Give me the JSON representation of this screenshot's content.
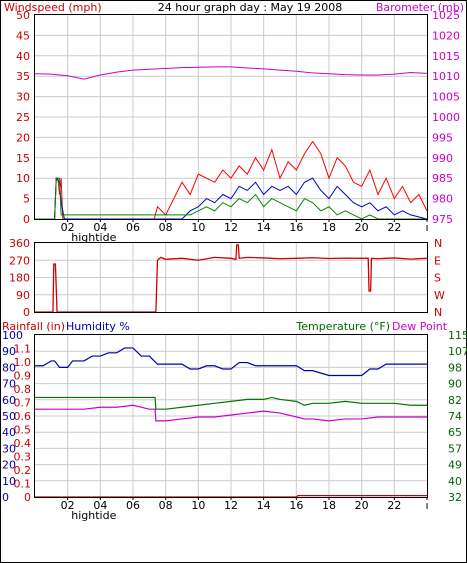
{
  "title": "24 hour graph day : May 19 2008",
  "colors": {
    "wind": "#ff0000",
    "wind_avg": "#0000cc",
    "wind_low": "#008800",
    "barometer": "#cc00cc",
    "direction": "#cc0000",
    "humidity": "#0000aa",
    "temperature": "#007700",
    "dewpoint": "#cc00cc",
    "rainfall": "#cc0000",
    "grid": "#cccccc",
    "frame": "#000000"
  },
  "chart_data": [
    {
      "type": "line",
      "name": "wind-barometer",
      "title": "24 hour graph day : May 19 2008",
      "ylabel": "Windspeed (mph)",
      "y2label": "Barometer (mb)",
      "ylim": [
        0,
        50
      ],
      "y2lim": [
        975,
        1025
      ],
      "yticks": [
        0,
        5,
        10,
        15,
        20,
        25,
        30,
        35,
        40,
        45,
        50
      ],
      "y2ticks": [
        975,
        980,
        985,
        990,
        995,
        1000,
        1005,
        1010,
        1015,
        1020,
        1025
      ],
      "xlim": [
        0,
        24
      ],
      "xticks": [
        "02",
        "04",
        "06",
        "08",
        "10",
        "12",
        "14",
        "16",
        "18",
        "20",
        "22",
        "ı"
      ],
      "xtick_pos": [
        2,
        4,
        6,
        8,
        10,
        12,
        14,
        16,
        18,
        20,
        22,
        24
      ],
      "markers": [
        {
          "label": "hightide",
          "x": 3.6
        }
      ],
      "grid": true,
      "series": [
        {
          "name": "Barometer",
          "axis": "y2",
          "x": [
            0,
            1,
            2,
            3,
            4,
            5,
            6,
            7,
            8,
            9,
            10,
            11,
            12,
            13,
            14,
            15,
            16,
            17,
            18,
            19,
            20,
            21,
            22,
            23,
            24
          ],
          "values": [
            1010.6,
            1010.5,
            1010.1,
            1009.3,
            1010.3,
            1011.0,
            1011.5,
            1011.7,
            1011.9,
            1012.1,
            1012.2,
            1012.3,
            1012.3,
            1012.0,
            1011.8,
            1011.5,
            1011.2,
            1010.8,
            1010.6,
            1010.4,
            1010.3,
            1010.3,
            1010.5,
            1010.9,
            1010.7
          ]
        },
        {
          "name": "Wind gust",
          "axis": "y",
          "x": [
            0,
            1.2,
            1.3,
            1.4,
            1.5,
            1.6,
            1.7,
            1.8,
            7.3,
            7.5,
            8,
            8.5,
            9,
            9.5,
            10,
            10.5,
            11,
            11.5,
            12,
            12.5,
            13,
            13.5,
            14,
            14.5,
            15,
            15.5,
            16,
            16.5,
            17,
            17.5,
            18,
            18.5,
            19,
            19.5,
            20,
            20.5,
            21,
            21.5,
            22,
            22.5,
            23,
            23.5,
            24
          ],
          "values": [
            0,
            0,
            10,
            10,
            6,
            10,
            0,
            0,
            0,
            3,
            1,
            5,
            9,
            6,
            11,
            10,
            9,
            12,
            10,
            13,
            11,
            15,
            12,
            17,
            10,
            14,
            12,
            16,
            19,
            16,
            10,
            15,
            13,
            9,
            8,
            12,
            6,
            10,
            5,
            8,
            4,
            6,
            2
          ]
        },
        {
          "name": "Wind average",
          "axis": "y",
          "x": [
            0,
            1.2,
            1.3,
            1.5,
            1.6,
            1.8,
            9,
            9.5,
            10,
            10.5,
            11,
            11.5,
            12,
            12.5,
            13,
            13.5,
            14,
            14.5,
            15,
            15.5,
            16,
            16.5,
            17,
            17.5,
            18,
            18.5,
            19,
            19.5,
            20,
            20.5,
            21,
            21.5,
            22,
            22.5,
            23,
            24
          ],
          "values": [
            0,
            0,
            10,
            9,
            4,
            0,
            0,
            2,
            3,
            5,
            4,
            6,
            5,
            8,
            7,
            9,
            6,
            8,
            7,
            8,
            6,
            9,
            10,
            7,
            5,
            8,
            6,
            4,
            3,
            4,
            2,
            3,
            1,
            2,
            1,
            0
          ]
        },
        {
          "name": "Wind low",
          "axis": "y",
          "x": [
            0,
            1.2,
            1.3,
            1.5,
            1.6,
            9.5,
            10,
            10.5,
            11,
            11.5,
            12,
            12.5,
            13,
            13.5,
            14,
            14.5,
            15,
            15.5,
            16,
            16.5,
            17,
            17.5,
            18,
            18.5,
            19,
            19.5,
            20,
            20.5,
            21,
            24
          ],
          "values": [
            0,
            0,
            10,
            10,
            1,
            1,
            2,
            3,
            2,
            4,
            3,
            5,
            4,
            6,
            3,
            5,
            4,
            3,
            2,
            5,
            4,
            2,
            3,
            1,
            2,
            1,
            0,
            1,
            0,
            0
          ]
        }
      ]
    },
    {
      "type": "line",
      "name": "wind-direction",
      "ylabel": "",
      "ylim": [
        0,
        360
      ],
      "yticks": [
        0,
        90,
        180,
        270,
        360
      ],
      "y2labels": [
        "N",
        "W",
        "S",
        "E",
        "N"
      ],
      "xlim": [
        0,
        24
      ],
      "grid": true,
      "series": [
        {
          "name": "Direction",
          "x": [
            0,
            1.1,
            1.15,
            1.25,
            1.35,
            1.45,
            1.5,
            7.4,
            7.5,
            7.7,
            8,
            9,
            10,
            11,
            12,
            12.3,
            12.35,
            12.45,
            12.5,
            13,
            14,
            15,
            16,
            17,
            18,
            19,
            20,
            20.4,
            20.45,
            20.55,
            20.6,
            21,
            22,
            23,
            24
          ],
          "values": [
            0,
            0,
            250,
            250,
            0,
            0,
            0,
            0,
            270,
            285,
            275,
            280,
            270,
            285,
            280,
            275,
            350,
            350,
            280,
            285,
            282,
            278,
            280,
            283,
            279,
            281,
            280,
            280,
            110,
            110,
            280,
            278,
            282,
            276,
            280
          ]
        }
      ]
    },
    {
      "type": "line",
      "name": "rain-humidity-temperature",
      "legend": [
        "Rainfall (in)",
        "Humidity %",
        "Temperature (°F)",
        "Dew Point"
      ],
      "ylim": [
        0,
        1.2
      ],
      "left_ticks_rain": [
        "0",
        "0.1",
        "0.2",
        "0.3",
        "0.4",
        "0.5",
        "0.6",
        "0.7",
        "0.8",
        "0.9",
        "1.0",
        "1.1",
        "1.2"
      ],
      "left_ticks_humidity": [
        "0",
        "10",
        "20",
        "30",
        "40",
        "50",
        "60",
        "70",
        "80",
        "90",
        "100"
      ],
      "right_ticks_temp": [
        "32",
        "40",
        "49",
        "57",
        "65",
        "74",
        "82",
        "90",
        "98",
        "107",
        "115"
      ],
      "xlim": [
        0,
        24
      ],
      "xticks": [
        "02",
        "04",
        "06",
        "08",
        "10",
        "12",
        "14",
        "16",
        "18",
        "20",
        "22",
        "ı"
      ],
      "xtick_pos": [
        2,
        4,
        6,
        8,
        10,
        12,
        14,
        16,
        18,
        20,
        22,
        24
      ],
      "markers": [
        {
          "label": "hightide",
          "x": 3.6
        }
      ],
      "grid": true,
      "series": [
        {
          "name": "Humidity",
          "unit": "%",
          "x": [
            0,
            0.5,
            1,
            1.2,
            1.5,
            2,
            2.3,
            3,
            3.5,
            4,
            4.5,
            5,
            5.5,
            6,
            6.5,
            7,
            7.5,
            8,
            9,
            9.5,
            10,
            10.5,
            11,
            11.5,
            12,
            12.5,
            13,
            13.5,
            14,
            15,
            16,
            16.5,
            17,
            18,
            19,
            19.5,
            20,
            20.5,
            21,
            21.5,
            22,
            23,
            24
          ],
          "values": [
            81,
            81,
            84,
            84,
            80,
            80,
            84,
            84,
            87,
            87,
            89,
            89,
            92,
            92,
            87,
            87,
            82,
            82,
            82,
            79,
            79,
            81,
            81,
            79,
            79,
            83,
            83,
            81,
            81,
            81,
            81,
            78,
            78,
            75,
            75,
            75,
            75,
            79,
            79,
            82,
            82,
            82,
            82
          ]
        },
        {
          "name": "Temperature",
          "unit": "°F",
          "x": [
            0,
            1,
            2,
            3,
            4,
            5,
            6,
            7,
            7.35,
            7.4,
            8,
            9,
            10,
            11,
            12,
            13,
            14,
            14.5,
            15,
            16,
            16.5,
            17,
            18,
            19,
            20,
            21,
            22,
            23,
            24
          ],
          "values": [
            83,
            83,
            83,
            83,
            83,
            83,
            83,
            83,
            83,
            77,
            77,
            78,
            79,
            80,
            81,
            82,
            82,
            83,
            82,
            81,
            79,
            80,
            80,
            81,
            80,
            80,
            80,
            79,
            79
          ]
        },
        {
          "name": "Dew Point",
          "unit": "°F",
          "x": [
            0,
            1,
            2,
            3,
            4,
            5,
            6,
            6.5,
            7,
            7.35,
            7.4,
            8,
            9,
            10,
            11,
            12,
            13,
            14,
            15,
            16,
            16.5,
            17,
            18,
            19,
            20,
            21,
            22,
            23,
            24
          ],
          "values": [
            77,
            77,
            77,
            77,
            78,
            78,
            79,
            78,
            77,
            77,
            71,
            71,
            72,
            73,
            73,
            74,
            75,
            76,
            75,
            73,
            72,
            72,
            71,
            72,
            72,
            73,
            73,
            73,
            73
          ]
        },
        {
          "name": "Rainfall",
          "unit": "in",
          "x": [
            0,
            16,
            16.1,
            24
          ],
          "values": [
            0,
            0,
            0.01,
            0.01
          ]
        }
      ]
    }
  ]
}
